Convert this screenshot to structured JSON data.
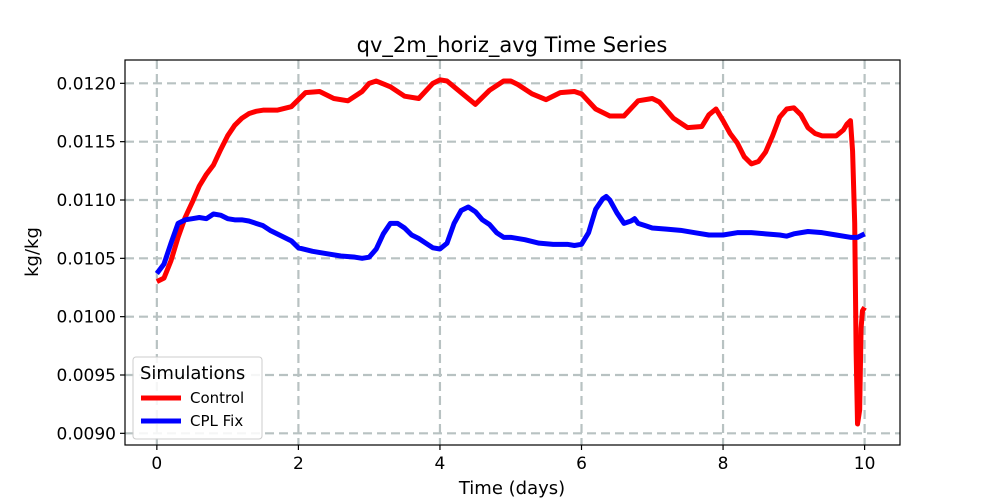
{
  "chart_data": {
    "type": "line",
    "title": "qv_2m_horiz_avg Time Series",
    "xlabel": "Time (days)",
    "ylabel": "kg/kg",
    "xlim": [
      -0.45,
      10.5
    ],
    "ylim": [
      0.0089,
      0.0122
    ],
    "xticks": [
      0,
      2,
      4,
      6,
      8,
      10
    ],
    "xtick_labels": [
      "0",
      "2",
      "4",
      "6",
      "8",
      "10"
    ],
    "yticks": [
      0.009,
      0.0095,
      0.01,
      0.0105,
      0.011,
      0.0115,
      0.012
    ],
    "ytick_labels": [
      "0.0090",
      "0.0095",
      "0.0100",
      "0.0105",
      "0.0110",
      "0.0115",
      "0.0120"
    ],
    "grid": true,
    "legend": {
      "title": "Simulations",
      "placement": "lower-left",
      "entries": [
        "Control",
        "CPL Fix"
      ]
    },
    "series": [
      {
        "name": "Control",
        "color": "#ff0000",
        "x": [
          0.0,
          0.1,
          0.2,
          0.3,
          0.4,
          0.5,
          0.6,
          0.7,
          0.8,
          0.9,
          1.0,
          1.1,
          1.2,
          1.3,
          1.4,
          1.5,
          1.7,
          1.9,
          2.0,
          2.1,
          2.3,
          2.5,
          2.7,
          2.9,
          3.0,
          3.1,
          3.3,
          3.5,
          3.7,
          3.9,
          4.0,
          4.1,
          4.3,
          4.5,
          4.7,
          4.9,
          5.0,
          5.1,
          5.3,
          5.5,
          5.7,
          5.9,
          6.0,
          6.2,
          6.4,
          6.6,
          6.8,
          7.0,
          7.1,
          7.3,
          7.5,
          7.7,
          7.8,
          7.9,
          8.0,
          8.1,
          8.2,
          8.3,
          8.4,
          8.5,
          8.6,
          8.7,
          8.8,
          8.9,
          9.0,
          9.1,
          9.2,
          9.3,
          9.4,
          9.5,
          9.6,
          9.7,
          9.75,
          9.8,
          9.83,
          9.86,
          9.88,
          9.9,
          9.93,
          9.95,
          9.97,
          10.0
        ],
        "y": [
          0.0103,
          0.01033,
          0.01048,
          0.01068,
          0.01085,
          0.01098,
          0.01112,
          0.01122,
          0.0113,
          0.01143,
          0.01155,
          0.01164,
          0.0117,
          0.01174,
          0.01176,
          0.01177,
          0.01177,
          0.0118,
          0.01186,
          0.01192,
          0.01193,
          0.01187,
          0.01185,
          0.01193,
          0.012,
          0.01202,
          0.01197,
          0.01189,
          0.01187,
          0.012,
          0.01203,
          0.01202,
          0.01192,
          0.01182,
          0.01194,
          0.01202,
          0.01202,
          0.01199,
          0.01191,
          0.01186,
          0.01192,
          0.01193,
          0.01191,
          0.01178,
          0.01172,
          0.01172,
          0.01185,
          0.01187,
          0.01184,
          0.0117,
          0.01162,
          0.01163,
          0.01173,
          0.01178,
          0.01168,
          0.01157,
          0.01149,
          0.01137,
          0.01131,
          0.01133,
          0.01141,
          0.01155,
          0.01171,
          0.01178,
          0.01179,
          0.01173,
          0.01162,
          0.01157,
          0.01155,
          0.01155,
          0.01155,
          0.0116,
          0.01165,
          0.01168,
          0.01142,
          0.0108,
          0.0097,
          0.00908,
          0.0092,
          0.0099,
          0.01005,
          0.01008
        ]
      },
      {
        "name": "CPL Fix",
        "color": "#0000ff",
        "x": [
          0.0,
          0.1,
          0.2,
          0.3,
          0.4,
          0.5,
          0.6,
          0.7,
          0.8,
          0.9,
          1.0,
          1.1,
          1.2,
          1.3,
          1.4,
          1.5,
          1.6,
          1.7,
          1.8,
          1.9,
          2.0,
          2.2,
          2.4,
          2.6,
          2.8,
          2.9,
          3.0,
          3.1,
          3.2,
          3.3,
          3.4,
          3.5,
          3.6,
          3.7,
          3.8,
          3.9,
          4.0,
          4.1,
          4.2,
          4.3,
          4.4,
          4.5,
          4.6,
          4.7,
          4.8,
          4.9,
          5.0,
          5.2,
          5.4,
          5.6,
          5.8,
          5.9,
          6.0,
          6.1,
          6.2,
          6.3,
          6.35,
          6.4,
          6.5,
          6.6,
          6.7,
          6.75,
          6.8,
          6.9,
          7.0,
          7.2,
          7.4,
          7.6,
          7.8,
          8.0,
          8.2,
          8.4,
          8.6,
          8.8,
          8.9,
          9.0,
          9.2,
          9.4,
          9.6,
          9.8,
          9.9,
          10.0
        ],
        "y": [
          0.01037,
          0.01045,
          0.01063,
          0.0108,
          0.01083,
          0.01084,
          0.01085,
          0.01084,
          0.01088,
          0.01087,
          0.01084,
          0.01083,
          0.01083,
          0.01082,
          0.0108,
          0.01078,
          0.01074,
          0.01071,
          0.01068,
          0.01065,
          0.01059,
          0.01056,
          0.01054,
          0.01052,
          0.01051,
          0.0105,
          0.01051,
          0.01058,
          0.01071,
          0.0108,
          0.0108,
          0.01076,
          0.0107,
          0.01067,
          0.01063,
          0.01059,
          0.01058,
          0.01063,
          0.0108,
          0.01091,
          0.01094,
          0.0109,
          0.01083,
          0.01079,
          0.01072,
          0.01068,
          0.01068,
          0.01066,
          0.01063,
          0.01062,
          0.01062,
          0.01061,
          0.01062,
          0.01072,
          0.01092,
          0.01101,
          0.01103,
          0.011,
          0.01089,
          0.0108,
          0.01082,
          0.01084,
          0.0108,
          0.01078,
          0.01076,
          0.01075,
          0.01074,
          0.01072,
          0.0107,
          0.0107,
          0.01072,
          0.01072,
          0.01071,
          0.0107,
          0.01069,
          0.01071,
          0.01073,
          0.01072,
          0.0107,
          0.01068,
          0.01068,
          0.01071
        ]
      }
    ]
  }
}
